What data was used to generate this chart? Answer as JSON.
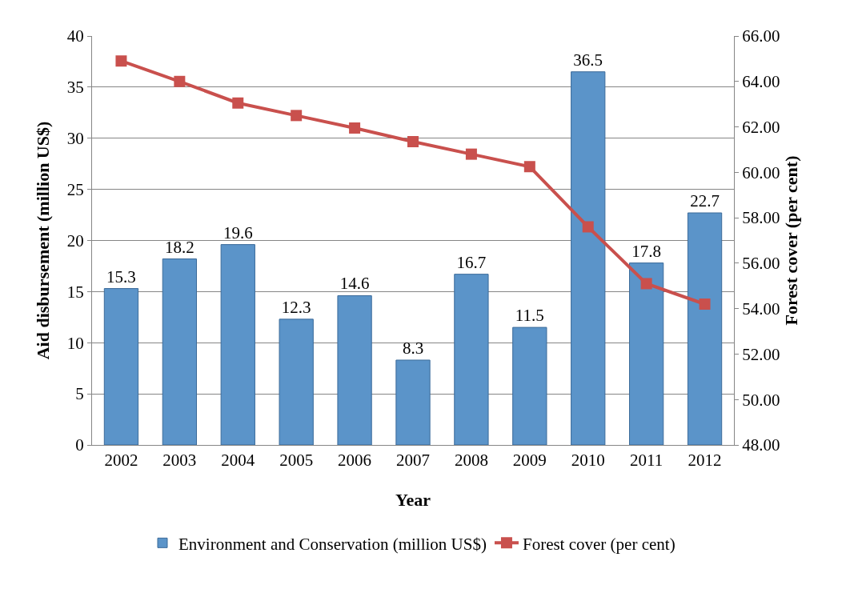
{
  "chart_data": {
    "type": "bar",
    "xlabel": "Year",
    "ylabel": "Aid disbursement (million US$)",
    "y2label": "Forest cover (per cent)",
    "categories": [
      "2002",
      "2003",
      "2004",
      "2005",
      "2006",
      "2007",
      "2008",
      "2009",
      "2010",
      "2011",
      "2012"
    ],
    "series": [
      {
        "name": "Environment and Conservation (million US$)",
        "color": "#5b94c9",
        "values": [
          15.3,
          18.2,
          19.6,
          12.3,
          14.6,
          8.3,
          16.7,
          11.5,
          36.5,
          17.8,
          22.7
        ],
        "data_labels": true
      },
      {
        "name": "Forest cover (per cent)",
        "type": "line",
        "axis": "y2",
        "color": "#c9504d",
        "marker": "square",
        "line_style": "solid",
        "values": [
          64.9,
          64.0,
          63.05,
          62.5,
          61.95,
          61.35,
          60.8,
          60.25,
          57.6,
          55.1,
          54.2
        ]
      }
    ],
    "ylim": [
      0,
      40
    ],
    "yticks": [
      0,
      5,
      10,
      15,
      20,
      25,
      30,
      35,
      40
    ],
    "y2lim": [
      48,
      66
    ],
    "y2ticks": [
      {
        "value": 48,
        "label": "48.00"
      },
      {
        "value": 50,
        "label": "50.00"
      },
      {
        "value": 52,
        "label": "52.00"
      },
      {
        "value": 54,
        "label": "54.00"
      },
      {
        "value": 56,
        "label": "56.00"
      },
      {
        "value": 58,
        "label": "58.00"
      },
      {
        "value": 60,
        "label": "60.00"
      },
      {
        "value": 62,
        "label": "62.00"
      },
      {
        "value": 64,
        "label": "64.00"
      },
      {
        "value": 66,
        "label": "66.00"
      }
    ],
    "grid": "y",
    "legend": "bottom"
  }
}
